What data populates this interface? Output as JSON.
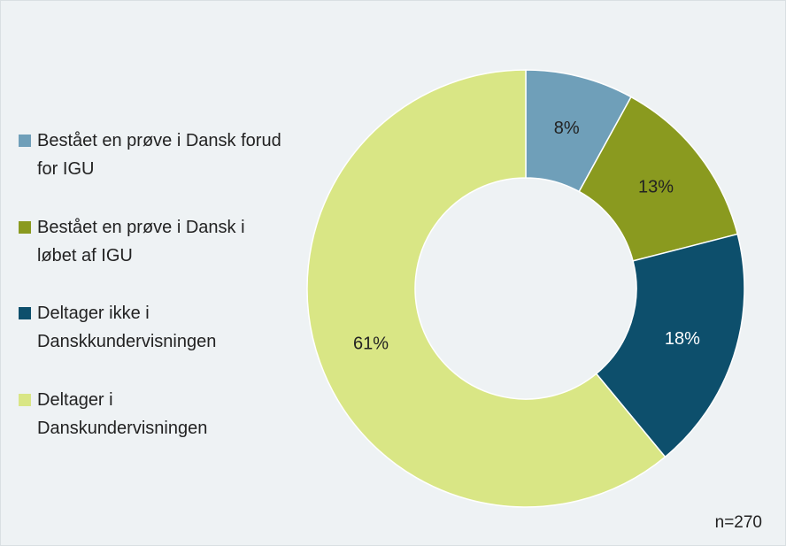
{
  "chart_data": {
    "type": "pie",
    "categories": [
      "Bestået en prøve i Dansk forud for IGU",
      "Bestået en prøve i Dansk i løbet af IGU",
      "Deltager ikke i Danskkundervisningen",
      "Deltager i Danskundervisningen"
    ],
    "values": [
      8,
      13,
      18,
      61
    ],
    "value_labels": [
      "8%",
      "13%",
      "18%",
      "61%"
    ],
    "colors": [
      "#6f9fb9",
      "#8a9a1f",
      "#0d4f6c",
      "#d9e685"
    ],
    "donut": true,
    "legend": "left",
    "annotation": "n=270"
  }
}
